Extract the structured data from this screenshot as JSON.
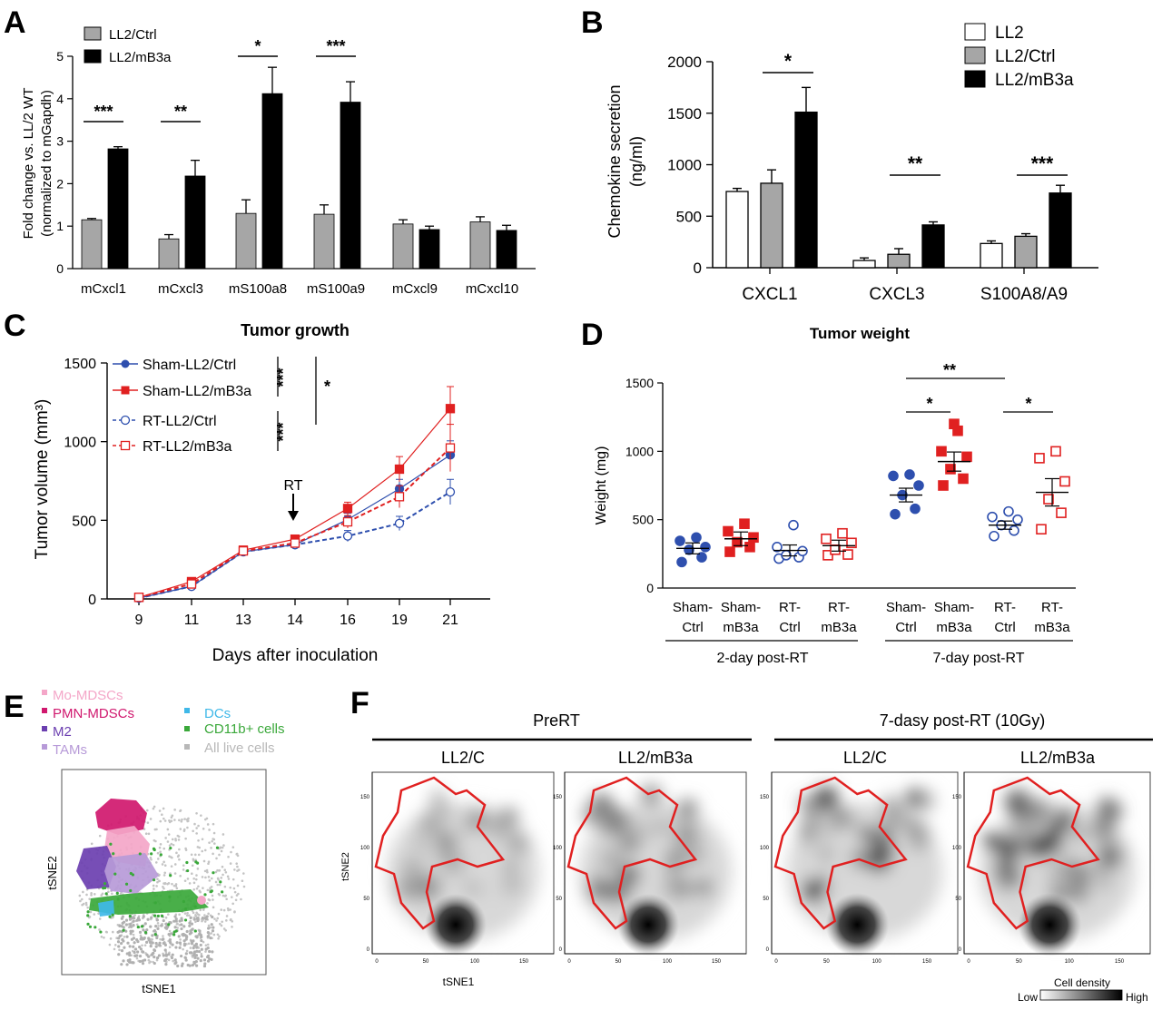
{
  "panels": {
    "A": {
      "letter": "A",
      "legend": [
        "LL2/Ctrl",
        "LL2/mB3a"
      ],
      "ylabel_line1": "Fold change vs. LL/2 WT",
      "ylabel_line2": "(normalized to mGapdh)",
      "sig": [
        "***",
        "**",
        "*",
        "***"
      ]
    },
    "B": {
      "letter": "B",
      "legend": [
        "LL2",
        "LL2/Ctrl",
        "LL2/mB3a"
      ],
      "ylabel_line1": "Chemokine secretion",
      "ylabel_line2": "(ng/ml)",
      "sig": [
        "*",
        "**",
        "***"
      ]
    },
    "C": {
      "letter": "C",
      "title": "Tumor growth",
      "ylabel": "Tumor volume (mm³)",
      "xlabel": "Days after inoculation",
      "legend": [
        "Sham-LL2/Ctrl",
        "Sham-LL2/mB3a",
        "RT-LL2/Ctrl",
        "RT-LL2/mB3a"
      ],
      "sig": [
        "***",
        "***",
        "*"
      ],
      "arrow_label": "RT"
    },
    "D": {
      "letter": "D",
      "title": "Tumor weight",
      "ylabel": "Weight (mg)",
      "group_labels": [
        "2-day post-RT",
        "7-day post-RT"
      ],
      "sig": [
        "**",
        "*",
        "*"
      ]
    },
    "E": {
      "letter": "E",
      "legend_col1": [
        "Mo-MDSCs",
        "PMN-MDSCs",
        "M2",
        "TAMs"
      ],
      "legend_col2": [
        "DCs",
        "CD11b+ cells",
        "All live cells"
      ],
      "legend_colors_col1": [
        "#f4a6c8",
        "#d0186e",
        "#6b3fb0",
        "#b79ad8"
      ],
      "legend_colors_col2": [
        "#3fb8e8",
        "#3aa83a",
        "#b8b8b8"
      ],
      "xlabel": "tSNE1",
      "ylabel": "tSNE2"
    },
    "F": {
      "letter": "F",
      "group1": "PreRT",
      "group2": "7-dasy post-RT (10Gy)",
      "sub_labels": [
        "LL2/C",
        "LL2/mB3a",
        "LL2/C",
        "LL2/mB3a"
      ],
      "xlabel": "tSNE1",
      "ylabel": "tSNE2",
      "density_title": "Cell density",
      "density_low": "Low",
      "density_high": "High",
      "tick_labels": [
        "0",
        "50",
        "100",
        "150"
      ]
    }
  },
  "chart_data": [
    {
      "id": "A",
      "type": "bar",
      "categories": [
        "mCxcl1",
        "mCxcl3",
        "mS100a8",
        "mS100a9",
        "mCxcl9",
        "mCxcl10"
      ],
      "series": [
        {
          "name": "LL2/Ctrl",
          "color": "#a6a6a6",
          "values": [
            1.15,
            0.7,
            1.3,
            1.28,
            1.05,
            1.1
          ],
          "errors": [
            0.03,
            0.1,
            0.32,
            0.22,
            0.1,
            0.12
          ]
        },
        {
          "name": "LL2/mB3a",
          "color": "#000000",
          "values": [
            2.82,
            2.18,
            4.12,
            3.92,
            0.92,
            0.9
          ],
          "errors": [
            0.05,
            0.37,
            0.62,
            0.48,
            0.08,
            0.12
          ]
        }
      ],
      "ylabel": "Fold change vs. LL/2 WT (normalized to mGapdh)",
      "ylim": [
        0,
        5
      ],
      "yticks": [
        0,
        1,
        2,
        3,
        4,
        5
      ]
    },
    {
      "id": "B",
      "type": "bar",
      "categories": [
        "CXCL1",
        "CXCL3",
        "S100A8/A9"
      ],
      "series": [
        {
          "name": "LL2",
          "color": "#ffffff",
          "values": [
            740,
            70,
            235
          ],
          "errors": [
            30,
            25,
            25
          ]
        },
        {
          "name": "LL2/Ctrl",
          "color": "#a6a6a6",
          "values": [
            820,
            130,
            305
          ],
          "errors": [
            130,
            55,
            25
          ]
        },
        {
          "name": "LL2/mB3a",
          "color": "#000000",
          "values": [
            1510,
            415,
            725
          ],
          "errors": [
            240,
            30,
            75
          ]
        }
      ],
      "ylabel": "Chemokine secretion (ng/ml)",
      "ylim": [
        0,
        2000
      ],
      "yticks": [
        0,
        500,
        1000,
        1500,
        2000
      ]
    },
    {
      "id": "C",
      "type": "line",
      "title": "Tumor growth",
      "x": [
        9,
        11,
        13,
        14,
        16,
        19,
        21
      ],
      "series": [
        {
          "name": "Sham-LL2/Ctrl",
          "color": "#2e4fae",
          "dashed": false,
          "filled": true,
          "marker": "circle",
          "values": [
            5,
            80,
            300,
            345,
            505,
            700,
            915
          ],
          "errors": [
            5,
            15,
            25,
            20,
            40,
            60,
            90
          ]
        },
        {
          "name": "Sham-LL2/mB3a",
          "color": "#e02020",
          "dashed": false,
          "filled": true,
          "marker": "square",
          "values": [
            10,
            110,
            310,
            380,
            575,
            825,
            1210
          ],
          "errors": [
            5,
            15,
            25,
            20,
            40,
            80,
            140
          ]
        },
        {
          "name": "RT-LL2/Ctrl",
          "color": "#2e4fae",
          "dashed": true,
          "filled": false,
          "marker": "circle",
          "values": [
            5,
            80,
            300,
            345,
            400,
            480,
            680
          ],
          "errors": [
            5,
            15,
            25,
            20,
            35,
            45,
            80
          ]
        },
        {
          "name": "RT-LL2/mB3a",
          "color": "#e02020",
          "dashed": true,
          "filled": false,
          "marker": "square",
          "values": [
            10,
            95,
            305,
            355,
            490,
            650,
            960
          ],
          "errors": [
            5,
            15,
            25,
            20,
            40,
            70,
            150
          ]
        }
      ],
      "xlabel": "Days after inoculation",
      "ylabel": "Tumor volume (mm3)",
      "ylim": [
        0,
        1500
      ],
      "yticks": [
        0,
        500,
        1000,
        1500
      ]
    },
    {
      "id": "D",
      "type": "scatter",
      "title": "Tumor weight",
      "categories": [
        "Sham-\nCtrl",
        "Sham-\nmB3a",
        "RT-\nCtrl",
        "RT-\nmB3a",
        "Sham-\nCtrl",
        "Sham-\nmB3a",
        "RT-\nCtrl",
        "RT-\nmB3a"
      ],
      "groups": [
        {
          "label": "Sham-Ctrl",
          "color": "#2e4fae",
          "filled": true,
          "marker": "circle",
          "mean": 290,
          "sem": 40,
          "values": [
            190,
            225,
            280,
            300,
            345,
            370
          ]
        },
        {
          "label": "Sham-mB3a",
          "color": "#e02020",
          "filled": true,
          "marker": "square",
          "mean": 360,
          "sem": 50,
          "values": [
            265,
            300,
            335,
            370,
            415,
            470
          ]
        },
        {
          "label": "RT-Ctrl",
          "color": "#2e4fae",
          "filled": false,
          "marker": "circle",
          "mean": 275,
          "sem": 40,
          "values": [
            215,
            225,
            240,
            270,
            300,
            460
          ]
        },
        {
          "label": "RT-mB3a",
          "color": "#e02020",
          "filled": false,
          "marker": "square",
          "mean": 310,
          "sem": 40,
          "values": [
            240,
            245,
            280,
            330,
            360,
            400
          ]
        },
        {
          "label": "Sham-Ctrl",
          "color": "#2e4fae",
          "filled": true,
          "marker": "circle",
          "mean": 680,
          "sem": 50,
          "values": [
            540,
            580,
            680,
            750,
            820,
            830
          ]
        },
        {
          "label": "Sham-mB3a",
          "color": "#e02020",
          "filled": true,
          "marker": "square",
          "mean": 925,
          "sem": 70,
          "values": [
            750,
            800,
            870,
            960,
            1000,
            1150,
            1200
          ]
        },
        {
          "label": "RT-Ctrl",
          "color": "#2e4fae",
          "filled": false,
          "marker": "circle",
          "mean": 460,
          "sem": 30,
          "values": [
            380,
            420,
            460,
            500,
            520,
            560
          ]
        },
        {
          "label": "RT-mB3a",
          "color": "#e02020",
          "filled": false,
          "marker": "square",
          "mean": 700,
          "sem": 100,
          "values": [
            430,
            550,
            650,
            780,
            950,
            1000
          ]
        }
      ],
      "ylabel": "Weight (mg)",
      "ylim": [
        0,
        1500
      ],
      "yticks": [
        0,
        500,
        1000,
        1500
      ]
    }
  ]
}
